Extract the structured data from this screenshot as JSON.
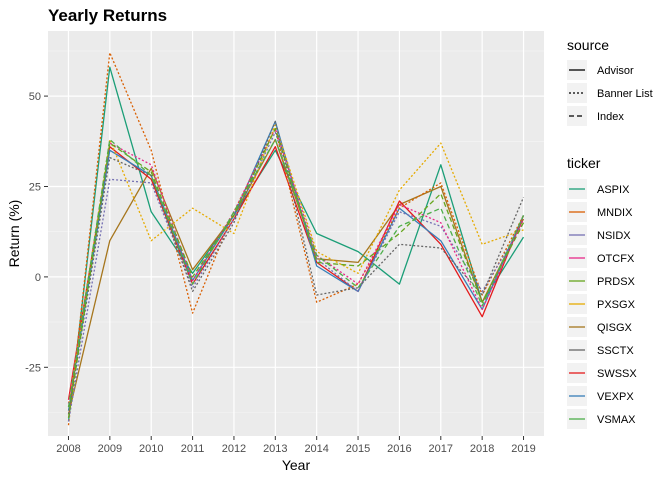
{
  "chart_data": {
    "type": "line",
    "title": "Yearly Returns",
    "xlabel": "Year",
    "ylabel": "Return (%)",
    "x": [
      2008,
      2009,
      2010,
      2011,
      2012,
      2013,
      2014,
      2015,
      2016,
      2017,
      2018,
      2019
    ],
    "x_ticks": [
      "2008",
      "2009",
      "2010",
      "2011",
      "2012",
      "2013",
      "2014",
      "2015",
      "2016",
      "2017",
      "2018",
      "2019"
    ],
    "y_ticks": [
      -25,
      0,
      25,
      50
    ],
    "y_tick_labels": [
      "-25",
      "0",
      "25",
      "50"
    ],
    "ylim": [
      -44,
      68
    ],
    "grid": true,
    "legend_position": "right",
    "legend_source": {
      "title": "source",
      "entries": [
        {
          "label": "Advisor",
          "dash": "solid"
        },
        {
          "label": "Banner List",
          "dash": "dotted"
        },
        {
          "label": "Index",
          "dash": "dashed"
        }
      ]
    },
    "legend_ticker": {
      "title": "ticker",
      "entries": [
        {
          "label": "ASPIX",
          "color": "#1b9e77"
        },
        {
          "label": "MNDIX",
          "color": "#d95f02"
        },
        {
          "label": "NSIDX",
          "color": "#7570b3"
        },
        {
          "label": "OTCFX",
          "color": "#e7298a"
        },
        {
          "label": "PRDSX",
          "color": "#66a61e"
        },
        {
          "label": "PXSGX",
          "color": "#e6ab02"
        },
        {
          "label": "QISGX",
          "color": "#a6761d"
        },
        {
          "label": "SSCTX",
          "color": "#666666"
        },
        {
          "label": "SWSSX",
          "color": "#e41a1c"
        },
        {
          "label": "VEXPX",
          "color": "#377eb8"
        },
        {
          "label": "VSMAX",
          "color": "#4daf4a"
        }
      ]
    },
    "series": [
      {
        "ticker": "ASPIX",
        "source": "Advisor",
        "color": "#1b9e77",
        "values": [
          -40,
          58,
          18,
          1,
          17,
          35,
          12,
          7,
          -2,
          31,
          -7,
          11
        ]
      },
      {
        "ticker": "QISGX",
        "source": "Advisor",
        "color": "#a6761d",
        "values": [
          -38,
          10,
          30,
          2,
          17,
          38,
          5,
          4,
          20,
          25,
          -7,
          16
        ]
      },
      {
        "ticker": "SWSSX",
        "source": "Advisor",
        "color": "#e41a1c",
        "values": [
          -34,
          36,
          27,
          -2,
          16,
          36,
          4,
          -4,
          21,
          9,
          -11,
          17
        ]
      },
      {
        "ticker": "VEXPX",
        "source": "Advisor",
        "color": "#377eb8",
        "values": [
          -37,
          35,
          28,
          -1,
          17,
          43,
          3,
          -4,
          19,
          10,
          -9,
          17
        ]
      },
      {
        "ticker": "MNDIX",
        "source": "Banner List",
        "color": "#d95f02",
        "values": [
          -41,
          62,
          35,
          -10,
          18,
          41,
          -7,
          -2,
          19,
          26,
          -5,
          17
        ]
      },
      {
        "ticker": "NSIDX",
        "source": "Banner List",
        "color": "#7570b3",
        "values": [
          -40,
          27,
          26,
          -3,
          16,
          40,
          5,
          -4,
          18,
          14,
          -4,
          15
        ]
      },
      {
        "ticker": "OTCFX",
        "source": "Banner List",
        "color": "#e7298a",
        "values": [
          -35,
          37,
          31,
          -1,
          18,
          41,
          6,
          -2,
          20,
          15,
          -9,
          16
        ]
      },
      {
        "ticker": "PXSGX",
        "source": "Banner List",
        "color": "#e6ab02",
        "values": [
          -36,
          38,
          10,
          19,
          12,
          42,
          7,
          1,
          24,
          37,
          9,
          13
        ]
      },
      {
        "ticker": "SSCTX",
        "source": "Banner List",
        "color": "#666666",
        "values": [
          -38,
          33,
          28,
          -4,
          15,
          43,
          -5,
          -3,
          9,
          8,
          -5,
          22
        ]
      },
      {
        "ticker": "PRDSX",
        "source": "Index",
        "color": "#66a61e",
        "values": [
          -39,
          37,
          29,
          0,
          17,
          41,
          4,
          3,
          12,
          23,
          -7,
          15
        ]
      },
      {
        "ticker": "VSMAX",
        "source": "Index",
        "color": "#4daf4a",
        "values": [
          -36,
          38,
          28,
          -2,
          18,
          38,
          6,
          -3,
          14,
          19,
          -8,
          17
        ]
      }
    ]
  }
}
